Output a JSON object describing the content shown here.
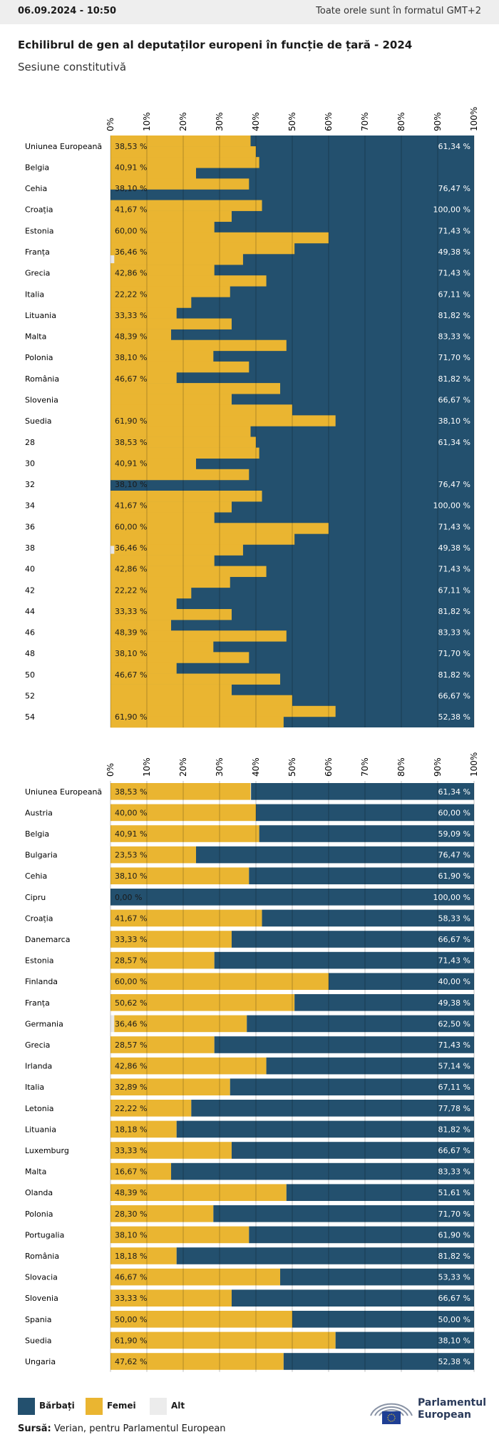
{
  "header": {
    "timestamp": "06.09.2024 - 10:50",
    "timezone_note": "Toate orele sunt în formatul GMT+2"
  },
  "title": "Echilibrul de gen al deputaților europeni în funcție de țară - 2024",
  "subtitle": "Sesiune constitutivă",
  "colors": {
    "men": "#23506e",
    "women": "#eab531",
    "other": "#e8e8e8"
  },
  "legend": {
    "men": "Bărbați",
    "women": "Femei",
    "other": "Alt"
  },
  "source": {
    "label": "Sursă:",
    "text": "Verian, pentru Parlamentul European"
  },
  "logo": {
    "line1": "Parlamentul",
    "line2": "European"
  },
  "chart_data": [
    {
      "type": "bar",
      "orientation": "horizontal",
      "stacked": true,
      "x_ticks": [
        "0%",
        "10%",
        "20%",
        "30%",
        "40%",
        "50%",
        "60%",
        "70%",
        "80%",
        "90%",
        "100%"
      ],
      "xlim": [
        0,
        100
      ],
      "categories": [
        "Uniunea Europeană",
        "Belgia",
        "Cehia",
        "Croația",
        "Estonia",
        "Franța",
        "Grecia",
        "Italia",
        "Lituania",
        "Malta",
        "Polonia",
        "România",
        "Slovenia",
        "Suedia",
        "28",
        "30",
        "32",
        "34",
        "36",
        "38",
        "40",
        "42",
        "44",
        "46",
        "48",
        "50",
        "52",
        "54"
      ],
      "women_labels": [
        "38,53 %",
        "40,91 %",
        "38,10 %",
        "41,67 %",
        "60,00 %",
        "36,46 %",
        "42,86 %",
        "22,22 %",
        "33,33 %",
        "48,39 %",
        "38,10 %",
        "46,67 %",
        "",
        "61,90 %",
        "38,53 %",
        "40,91 %",
        "38,10 %",
        "41,67 %",
        "60,00 %",
        "36,46 %",
        "42,86 %",
        "22,22 %",
        "33,33 %",
        "48,39 %",
        "38,10 %",
        "46,67 %",
        "",
        "61,90 %"
      ],
      "men_labels": [
        "61,34 %",
        "",
        "76,47 %",
        "100,00 %",
        "71,43 %",
        "49,38 %",
        "71,43 %",
        "67,11 %",
        "81,82 %",
        "83,33 %",
        "71,70 %",
        "81,82 %",
        "66,67 %",
        "38,10 %",
        "61,34 %",
        "",
        "76,47 %",
        "100,00 %",
        "71,43 %",
        "49,38 %",
        "71,43 %",
        "67,11 %",
        "81,82 %",
        "83,33 %",
        "71,70 %",
        "81,82 %",
        "66,67 %",
        "52,38 %"
      ],
      "series": [
        {
          "name": "Femei",
          "values": [
            38.53,
            40.91,
            38.1,
            41.67,
            60.0,
            36.46,
            42.86,
            22.22,
            33.33,
            48.39,
            38.1,
            46.67,
            50.0,
            61.9,
            38.53,
            40.91,
            38.1,
            41.67,
            60.0,
            36.46,
            42.86,
            22.22,
            33.33,
            48.39,
            38.1,
            46.67,
            50.0,
            61.9
          ]
        },
        {
          "name": "Alt",
          "values": [
            0,
            0,
            0,
            0,
            0,
            1.04,
            0,
            0,
            0,
            0,
            0,
            0,
            0,
            0,
            0,
            0,
            0,
            0,
            0,
            1.04,
            0,
            0,
            0,
            0,
            0,
            0,
            0,
            0
          ]
        }
      ],
      "step_values": [
        38.53,
        40.0,
        40.91,
        23.53,
        38.1,
        0,
        41.67,
        33.33,
        28.57,
        60.0,
        50.62,
        36.46,
        28.57,
        42.86,
        32.89,
        22.22,
        18.18,
        33.33,
        16.67,
        48.39,
        28.3,
        38.1,
        18.18,
        46.67,
        33.33,
        50.0,
        61.9,
        38.53,
        40.0,
        40.91,
        23.53,
        38.1,
        0,
        41.67,
        33.33,
        28.57,
        60.0,
        50.62,
        36.46,
        28.57,
        42.86,
        32.89,
        22.22,
        18.18,
        33.33,
        16.67,
        48.39,
        28.3,
        38.1,
        18.18,
        46.67,
        33.33,
        50.0,
        61.9,
        47.62
      ],
      "step_other": [
        0,
        0,
        0,
        0,
        0,
        0,
        0,
        0,
        0,
        0,
        0,
        1.04,
        0,
        0,
        0,
        0,
        0,
        0,
        0,
        0,
        0,
        0,
        0,
        0,
        0,
        0,
        0,
        0,
        0,
        0,
        0,
        0,
        0,
        0,
        0,
        0,
        0,
        0,
        1.04,
        0,
        0,
        0,
        0,
        0,
        0,
        0,
        0,
        0,
        0,
        0,
        0,
        0,
        0,
        0,
        0
      ]
    },
    {
      "type": "bar",
      "orientation": "horizontal",
      "stacked": true,
      "x_ticks": [
        "0%",
        "10%",
        "20%",
        "30%",
        "40%",
        "50%",
        "60%",
        "70%",
        "80%",
        "90%",
        "100%"
      ],
      "xlim": [
        0,
        100
      ],
      "categories": [
        "Uniunea Europeană",
        "Austria",
        "Belgia",
        "Bulgaria",
        "Cehia",
        "Cipru",
        "Croația",
        "Danemarca",
        "Estonia",
        "Finlanda",
        "Franța",
        "Germania",
        "Grecia",
        "Irlanda",
        "Italia",
        "Letonia",
        "Lituania",
        "Luxemburg",
        "Malta",
        "Olanda",
        "Polonia",
        "Portugalia",
        "România",
        "Slovacia",
        "Slovenia",
        "Spania",
        "Suedia",
        "Ungaria"
      ],
      "series": [
        {
          "name": "Femei",
          "values": [
            38.53,
            40.0,
            40.91,
            23.53,
            38.1,
            0.0,
            41.67,
            33.33,
            28.57,
            60.0,
            50.62,
            36.46,
            28.57,
            42.86,
            32.89,
            22.22,
            18.18,
            33.33,
            16.67,
            48.39,
            28.3,
            38.1,
            18.18,
            46.67,
            33.33,
            50.0,
            61.9,
            47.62
          ]
        },
        {
          "name": "Bărbați",
          "values": [
            61.34,
            60.0,
            59.09,
            76.47,
            61.9,
            100.0,
            58.33,
            66.67,
            71.43,
            40.0,
            49.38,
            62.5,
            71.43,
            57.14,
            67.11,
            77.78,
            81.82,
            66.67,
            83.33,
            51.61,
            71.7,
            61.9,
            81.82,
            53.33,
            66.67,
            50.0,
            38.1,
            52.38
          ]
        },
        {
          "name": "Alt",
          "values": [
            0,
            0,
            0,
            0,
            0,
            0,
            0,
            0,
            0,
            0,
            0,
            1.04,
            0,
            0,
            0,
            0,
            0,
            0,
            0,
            0,
            0,
            0,
            0,
            0,
            0,
            0,
            0,
            0
          ]
        }
      ],
      "women_labels": [
        "38,53 %",
        "40,00 %",
        "40,91 %",
        "23,53 %",
        "38,10 %",
        "0,00 %",
        "41,67 %",
        "33,33 %",
        "28,57 %",
        "60,00 %",
        "50,62 %",
        "36,46 %",
        "28,57 %",
        "42,86 %",
        "32,89 %",
        "22,22 %",
        "18,18 %",
        "33,33 %",
        "16,67 %",
        "48,39 %",
        "28,30 %",
        "38,10 %",
        "18,18 %",
        "46,67 %",
        "33,33 %",
        "50,00 %",
        "61,90 %",
        "47,62 %"
      ],
      "men_labels": [
        "61,34 %",
        "60,00 %",
        "59,09 %",
        "76,47 %",
        "61,90 %",
        "100,00 %",
        "58,33 %",
        "66,67 %",
        "71,43 %",
        "40,00 %",
        "49,38 %",
        "62,50 %",
        "71,43 %",
        "57,14 %",
        "67,11 %",
        "77,78 %",
        "81,82 %",
        "66,67 %",
        "83,33 %",
        "51,61 %",
        "71,70 %",
        "61,90 %",
        "81,82 %",
        "53,33 %",
        "66,67 %",
        "50,00 %",
        "38,10 %",
        "52,38 %"
      ]
    }
  ]
}
